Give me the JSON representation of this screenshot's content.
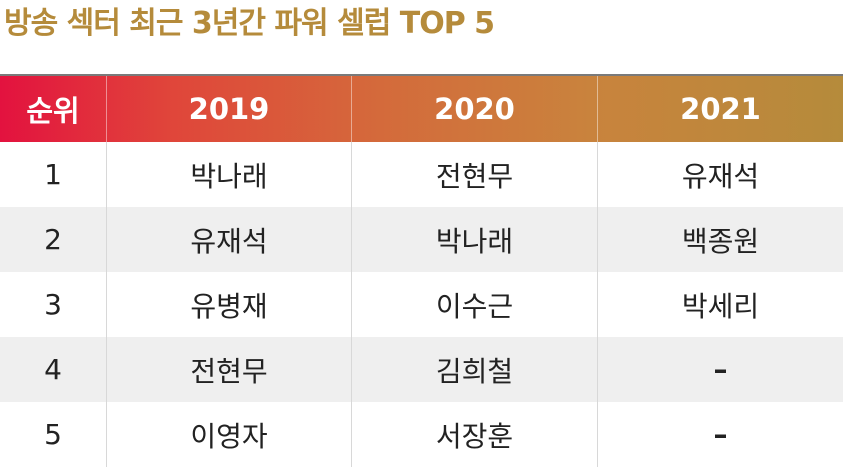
{
  "title": "방송 섹터 최근 3년간 파워 셀럽 TOP 5",
  "header": [
    "순위",
    "2019",
    "2020",
    "2021"
  ],
  "rows": [
    [
      "1",
      "박나래",
      "전현무",
      "유재석"
    ],
    [
      "2",
      "유재석",
      "박나래",
      "백종원"
    ],
    [
      "3",
      "유병재",
      "이수근",
      "박세리"
    ],
    [
      "4",
      "전현무",
      "김희철",
      "–"
    ],
    [
      "5",
      "이영자",
      "서장훈",
      "–"
    ]
  ],
  "colors": {
    "title": "#b58b3b",
    "header_gradient_start": "#e3123f",
    "header_gradient_end": "#b58b3b",
    "row_shade": "#efefef"
  }
}
